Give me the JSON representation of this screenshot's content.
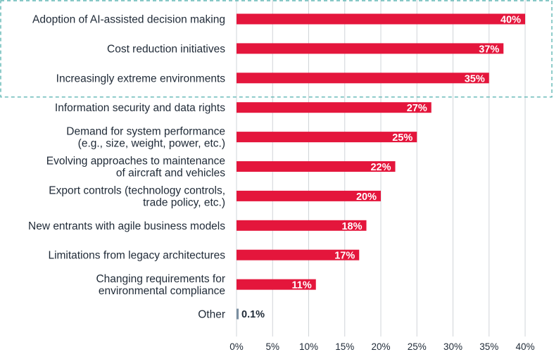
{
  "chart_data": {
    "type": "bar",
    "orientation": "horizontal",
    "categories": [
      [
        "Adoption of AI-assisted decision making"
      ],
      [
        "Cost reduction initiatives"
      ],
      [
        "Increasingly extreme environments"
      ],
      [
        "Information security and data rights"
      ],
      [
        "Demand for system performance",
        "(e.g., size, weight, power, etc.)"
      ],
      [
        "Evolving approaches to maintenance",
        "of aircraft and vehicles"
      ],
      [
        "Export controls (technology controls,",
        "trade policy, etc.)"
      ],
      [
        "New entrants with agile business models"
      ],
      [
        "Limitations from legacy architectures"
      ],
      [
        "Changing requirements for",
        "environmental compliance"
      ],
      [
        "Other"
      ]
    ],
    "values": [
      40,
      37,
      35,
      27,
      25,
      22,
      20,
      18,
      17,
      11,
      0.1
    ],
    "value_labels": [
      "40%",
      "37%",
      "35%",
      "27%",
      "25%",
      "22%",
      "20%",
      "18%",
      "17%",
      "11%",
      "0.1%"
    ],
    "xlim": [
      0,
      40
    ],
    "xticks": [
      0,
      5,
      10,
      15,
      20,
      25,
      30,
      35,
      40
    ],
    "xtick_labels": [
      "0%",
      "5%",
      "10%",
      "15%",
      "20%",
      "25%",
      "30%",
      "35%",
      "40%"
    ],
    "grid": true,
    "highlighted_categories": [
      0,
      1,
      2
    ],
    "colors": {
      "bar": "#e4163c",
      "other_bar": "#7a8ea0",
      "grid": "#d0d4d8",
      "highlight_box": "#5fb6b4",
      "value_on_bar": "#ffffff",
      "value_outside": "#1f2a37",
      "text": "#1f2a37"
    }
  }
}
